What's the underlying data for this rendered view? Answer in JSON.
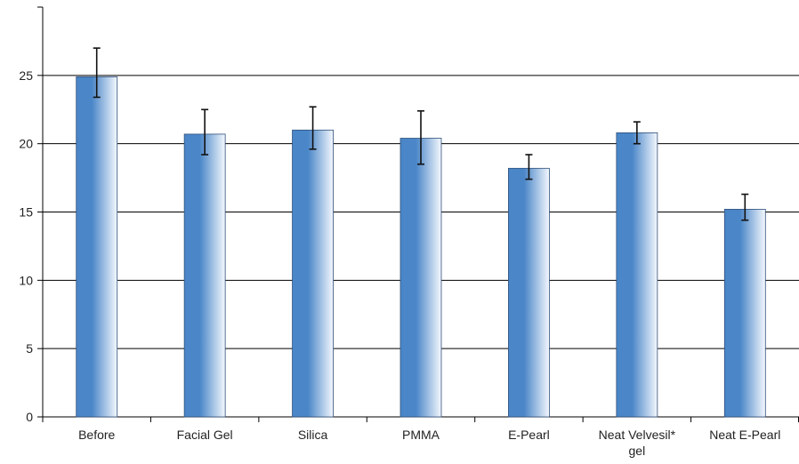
{
  "chart_data": {
    "type": "bar",
    "title": "",
    "xlabel": "",
    "ylabel": "",
    "categories": [
      "Before",
      "Facial Gel",
      "Silica",
      "PMMA",
      "E-Pearl",
      "Neat Velvesil* gel",
      "Neat E-Pearl"
    ],
    "category_lines": [
      [
        "Before"
      ],
      [
        "Facial Gel"
      ],
      [
        "Silica"
      ],
      [
        "PMMA"
      ],
      [
        "E-Pearl"
      ],
      [
        "Neat Velvesil*",
        "gel"
      ],
      [
        "Neat E-Pearl"
      ]
    ],
    "values": [
      24.9,
      20.7,
      21.0,
      20.4,
      18.2,
      20.8,
      15.2
    ],
    "error_low": [
      23.4,
      19.2,
      19.6,
      18.5,
      17.4,
      20.0,
      14.4
    ],
    "error_high": [
      27.0,
      22.5,
      22.7,
      22.4,
      19.2,
      21.6,
      16.3
    ],
    "ylim": [
      0,
      30
    ],
    "yticks": [
      0,
      5,
      10,
      15,
      20,
      25
    ],
    "grid": true,
    "legend": "none",
    "colors": {
      "bar_dark": "#4a86c8",
      "bar_light": "#f4f8fd",
      "bar_outline": "#2f4f7a",
      "grid": "#000000",
      "axis": "#000000",
      "error": "#111111"
    }
  }
}
